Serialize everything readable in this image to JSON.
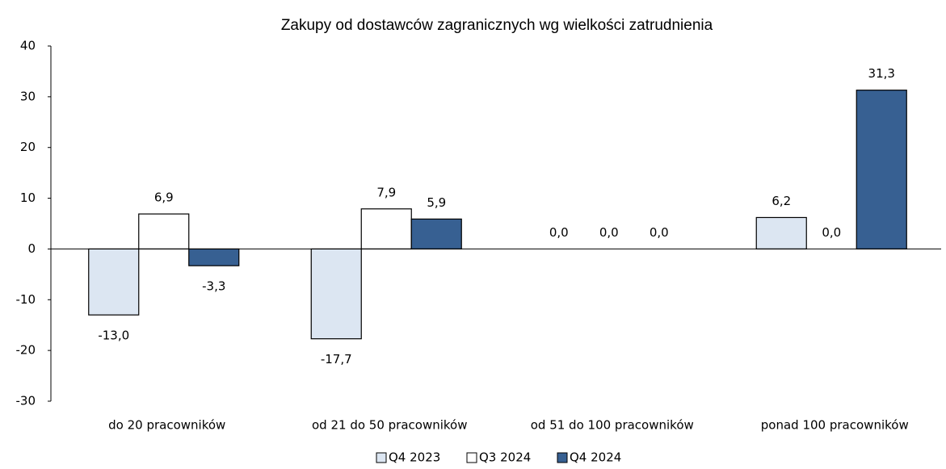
{
  "chart_data": {
    "type": "bar",
    "title": "Zakupy od dostawców zagranicznych wg wielkości zatrudnienia",
    "categories": [
      "do 20 pracowników",
      "od 21 do 50 pracowników",
      "od 51 do 100 pracowników",
      "ponad 100 pracowników"
    ],
    "series": [
      {
        "name": "Q4 2023",
        "color": "#dce6f2",
        "values": [
          -13.0,
          -17.7,
          0.0,
          6.2
        ],
        "value_labels": [
          "-13,0",
          "-17,7",
          "0,0",
          "6,2"
        ]
      },
      {
        "name": "Q3 2024",
        "color": "#ffffff",
        "values": [
          6.9,
          7.9,
          0.0,
          0.0
        ],
        "value_labels": [
          "6,9",
          "7,9",
          "0,0",
          "0,0"
        ]
      },
      {
        "name": "Q4 2024",
        "color": "#376092",
        "values": [
          -3.3,
          5.9,
          0.0,
          31.3
        ],
        "value_labels": [
          "-3,3",
          "5,9",
          "0,0",
          "31,3"
        ]
      }
    ],
    "ylim": [
      -30,
      40
    ],
    "yticks": [
      -30,
      -20,
      -10,
      0,
      10,
      20,
      30,
      40
    ],
    "grid": false,
    "legend": "bottom"
  }
}
